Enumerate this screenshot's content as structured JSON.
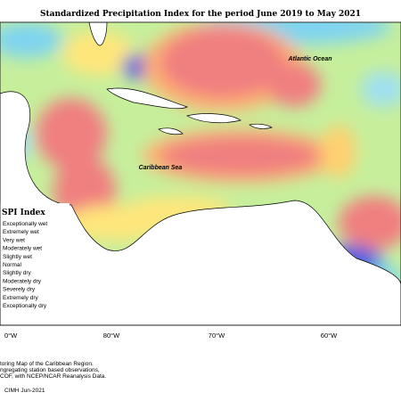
{
  "title": "Standardized Precipitation Index for the period June 2019 to May 2021",
  "map": {
    "labels": [
      "Atlantic Ocean",
      "Caribbean Sea"
    ],
    "longitudes": [
      "0°W",
      "80°W",
      "70°W",
      "60°W"
    ]
  },
  "legend": {
    "title": "SPI Index",
    "items": [
      "Exceptionally wet",
      "Extremely wet",
      "Very wet",
      "Moderately wet",
      "Slightly wet",
      "Normal",
      "Slightly dry",
      "Moderately dry",
      "Severely dry",
      "Extremely dry",
      "Exceptionally dry"
    ]
  },
  "footer": {
    "lines": [
      "toring Map of the Caribbean Region.",
      "ngregating station based observations,",
      "COF, with NCEP/NCAR Reanalysis Data."
    ],
    "credit": "CIMH Jun-2021"
  }
}
